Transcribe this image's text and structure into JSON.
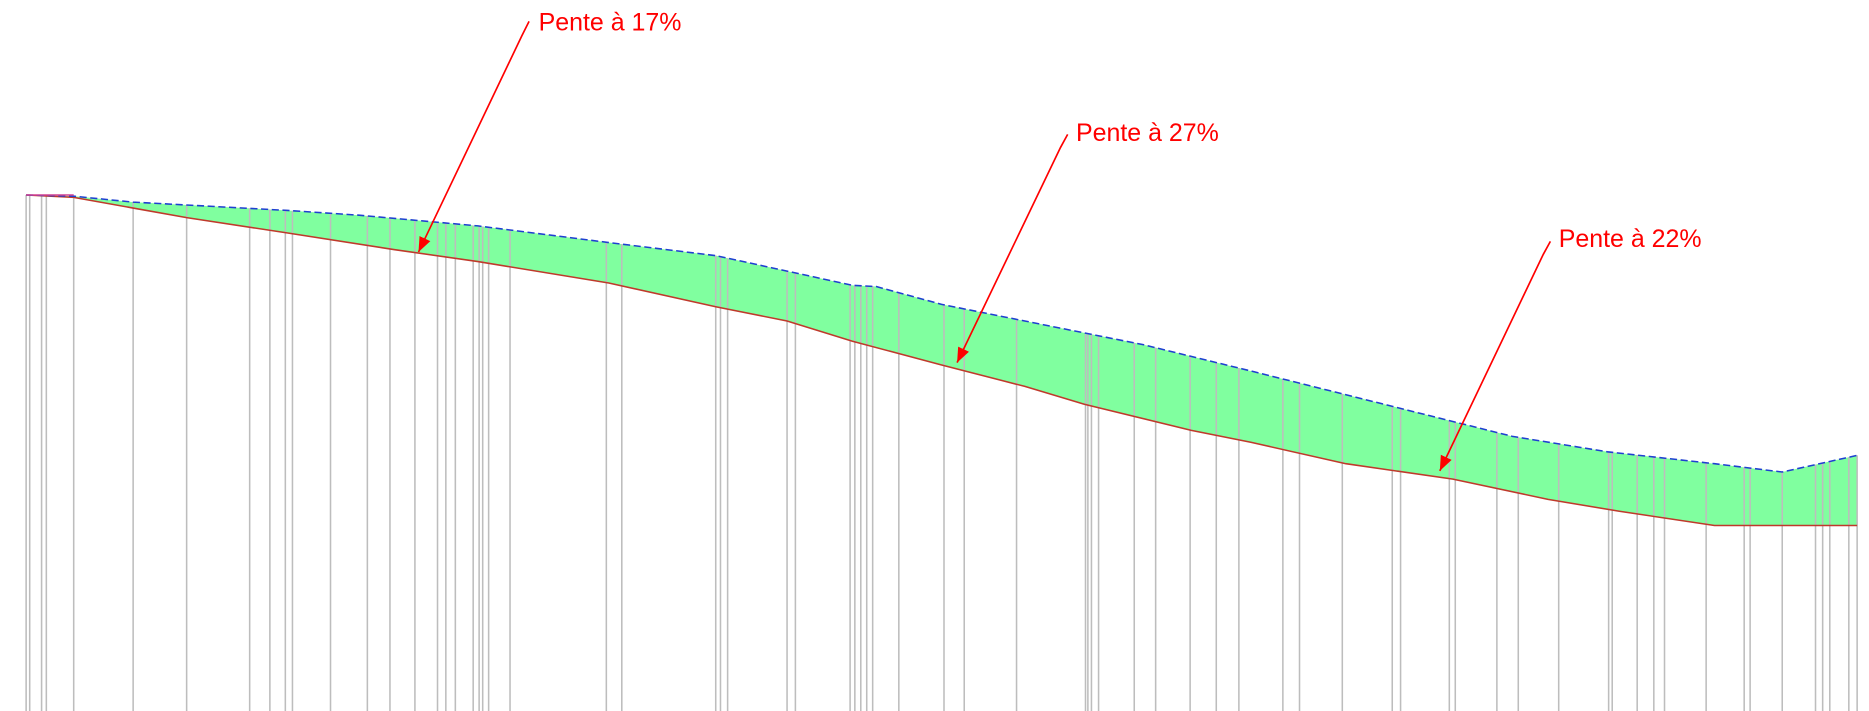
{
  "annotations": [
    "Pente à 17%",
    "Pente à 27%",
    "Pente à 22%"
  ]
}
